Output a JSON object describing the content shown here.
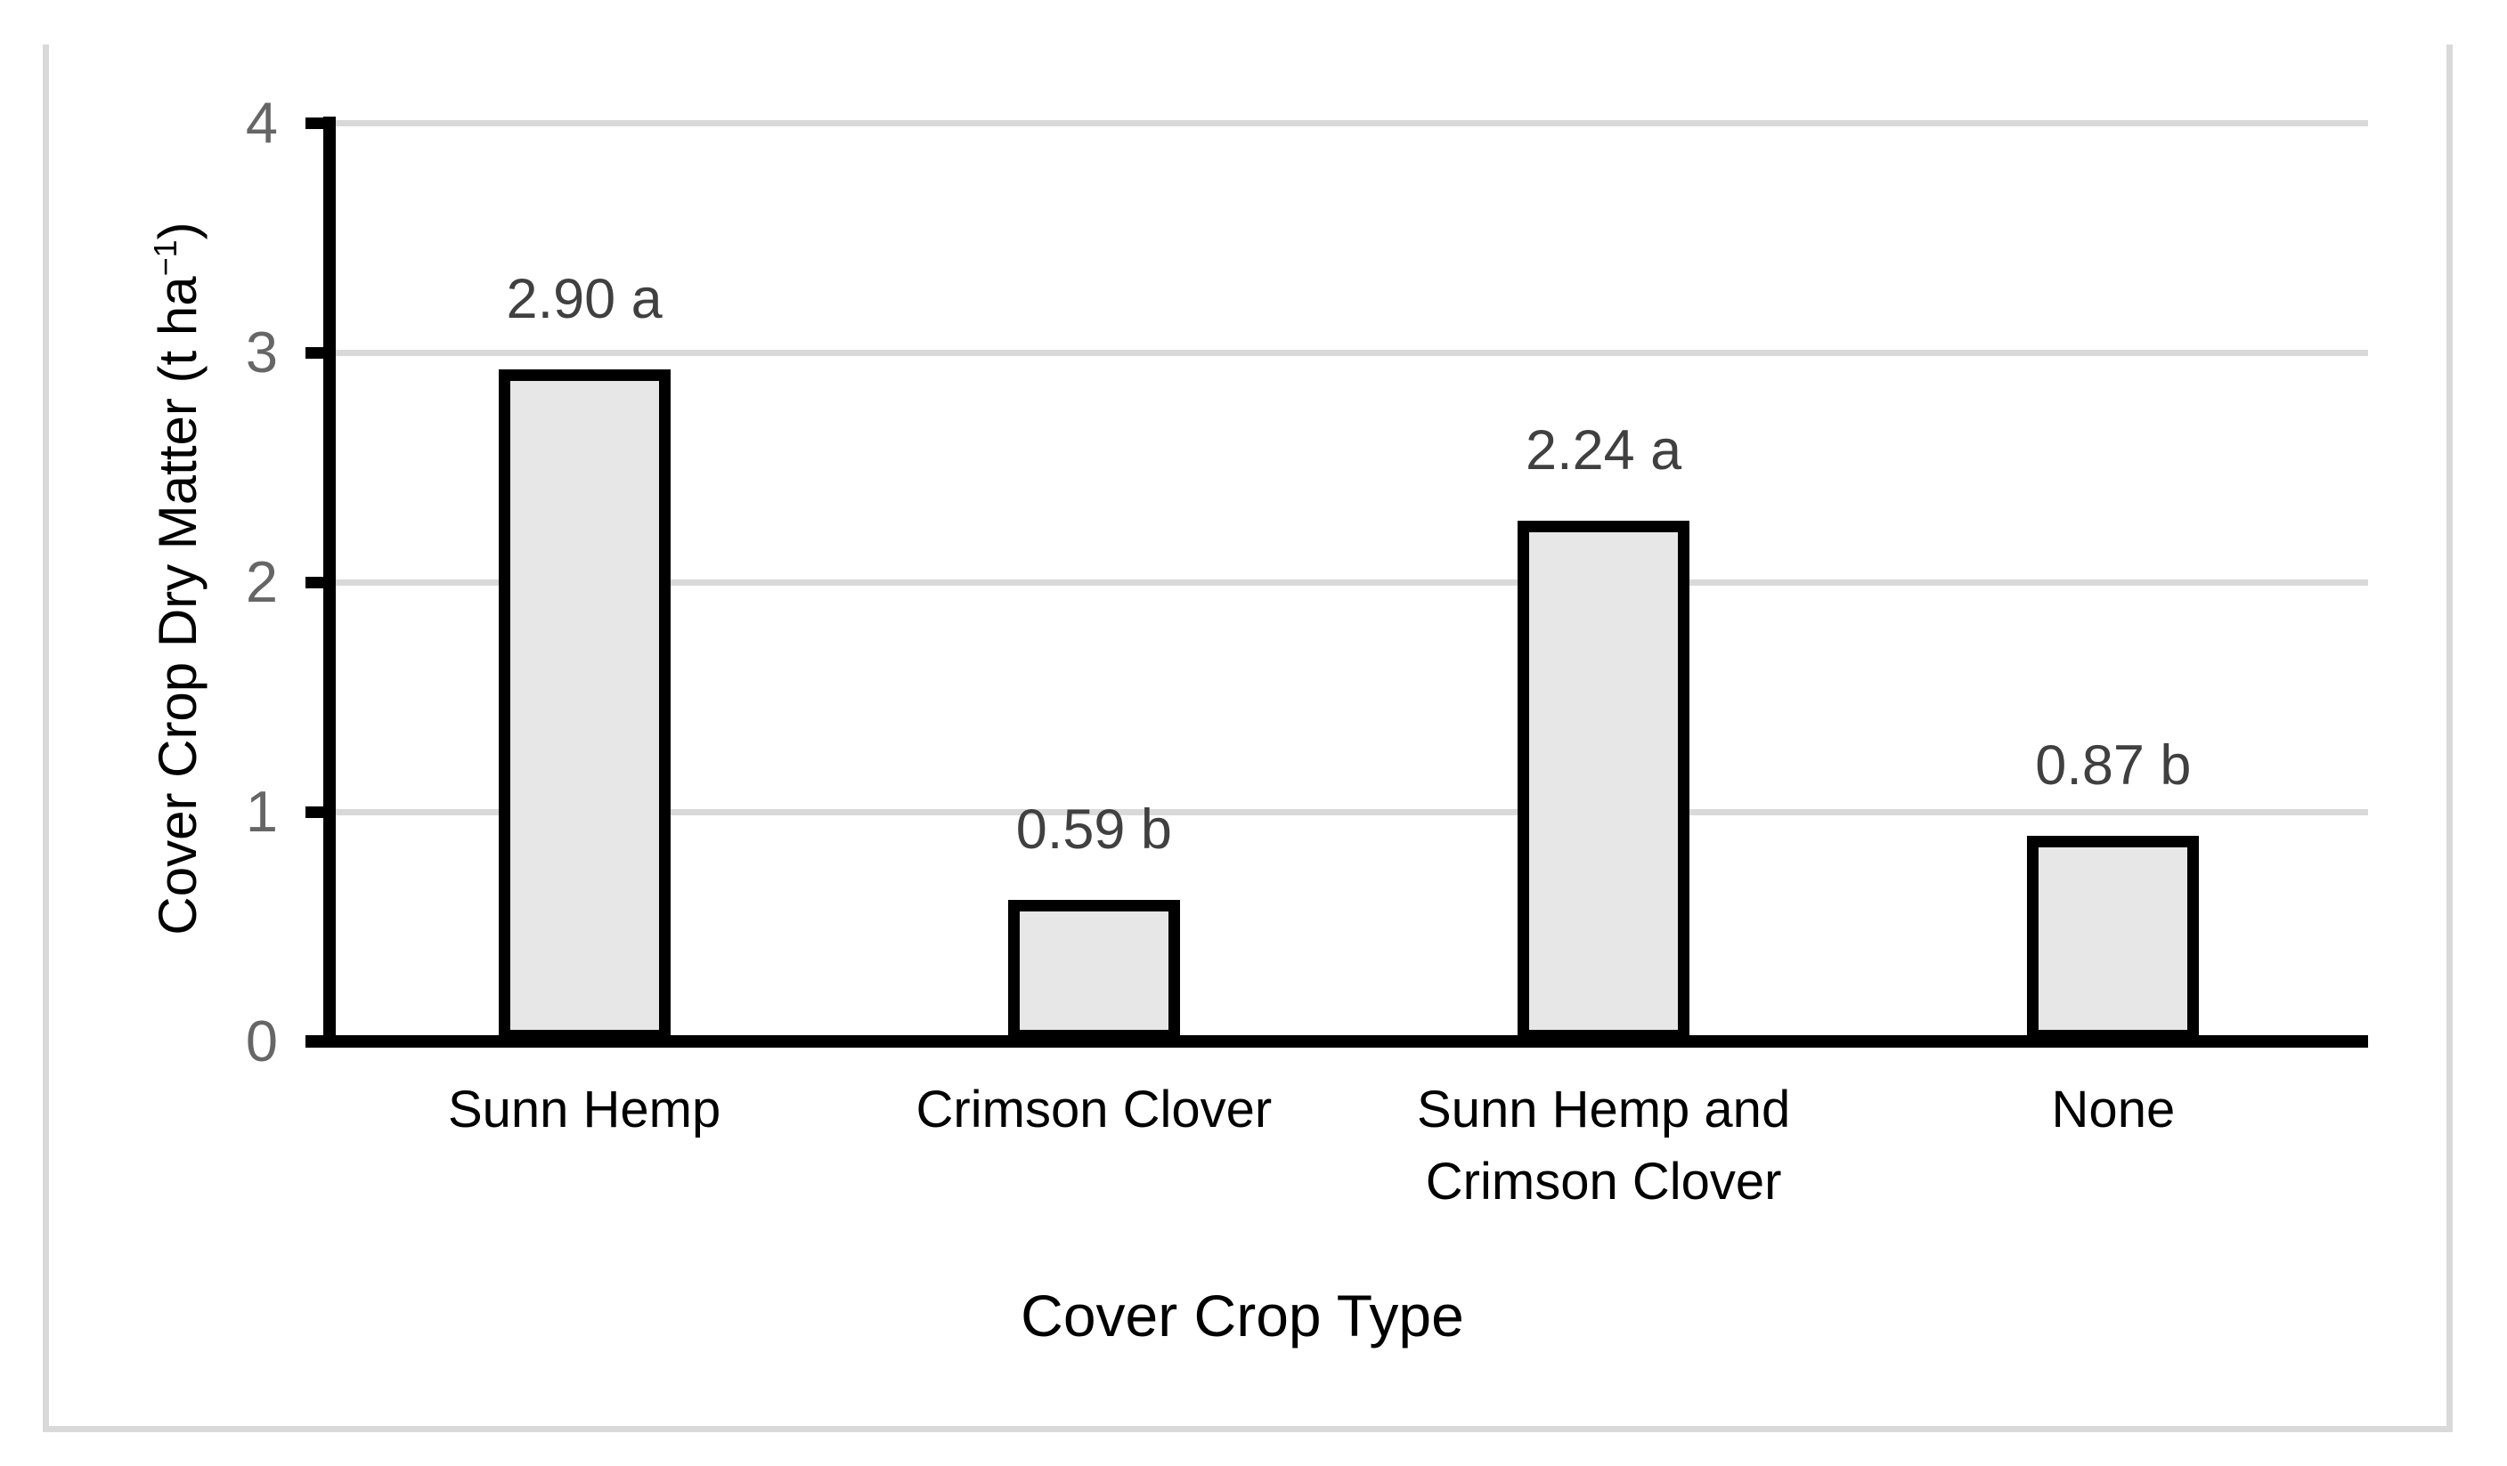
{
  "figure": {
    "background": "#FFFFFF",
    "frame_color": "#D9D9D9"
  },
  "chart_data": {
    "type": "bar",
    "title": "",
    "categories": [
      "Sunn Hemp",
      "Crimson Clover",
      "Sunn Hemp and\nCrimson Clover",
      "None"
    ],
    "values": [
      2.9,
      0.59,
      2.24,
      0.87
    ],
    "bar_labels": [
      "2.90 a",
      "0.59 b",
      "2.24 a",
      "0.87 b"
    ],
    "xlabel": "Cover Crop Type",
    "ylabel": "Cover Crop Dry Matter (t ha⁻¹)",
    "ylabel_parts": {
      "pre": "Cover Crop Dry Matter (t ha",
      "sup": "−1",
      "post": ")"
    },
    "yticks": [
      "0",
      "1",
      "2",
      "3",
      "4"
    ],
    "ylim": [
      0,
      4
    ],
    "grid": "horizontal",
    "legend": "none",
    "bar_fill": "#E7E7E7",
    "bar_border": "#000000",
    "gridline_color": "#D9D9D9",
    "axis_color": "#000000",
    "tick_label_color": "#666666",
    "data_label_color": "#404040"
  }
}
